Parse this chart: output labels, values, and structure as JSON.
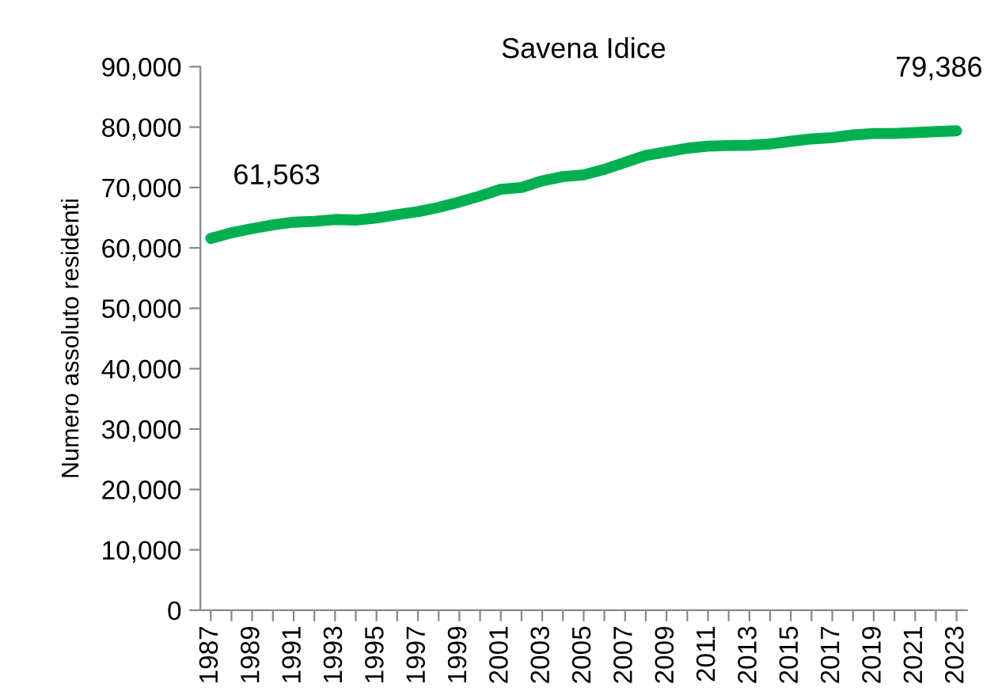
{
  "chart_data": {
    "type": "line",
    "title": "Savena Idice",
    "ylabel": "Numero assoluto residenti",
    "categories": [
      "1987",
      null,
      "1989",
      null,
      "1991",
      null,
      "1993",
      null,
      "1995",
      null,
      "1997",
      null,
      "1999",
      null,
      "2001",
      null,
      "2003",
      null,
      "2005",
      null,
      "2007",
      null,
      "2009",
      null,
      "2011",
      null,
      "2013",
      null,
      "2015",
      null,
      "2017",
      null,
      "2019",
      null,
      "2021",
      null,
      "2023"
    ],
    "series": [
      {
        "color": "#00b050",
        "values": [
          61563,
          62500,
          63200,
          63800,
          64250,
          64400,
          64700,
          64600,
          64950,
          65500,
          66000,
          66700,
          67600,
          68600,
          69700,
          70000,
          71100,
          71800,
          72100,
          73000,
          74150,
          75300,
          75900,
          76500,
          76850,
          76950,
          77000,
          77200,
          77650,
          78050,
          78250,
          78700,
          78950,
          78950,
          79100,
          79250,
          79386
        ],
        "value_labels": [
          "61,563",
          null,
          null,
          null,
          null,
          null,
          null,
          null,
          null,
          null,
          null,
          null,
          null,
          null,
          null,
          null,
          null,
          null,
          null,
          null,
          null,
          null,
          null,
          null,
          null,
          null,
          null,
          null,
          null,
          null,
          null,
          null,
          null,
          null,
          null,
          null,
          "79,386"
        ]
      }
    ],
    "ylim": [
      0,
      90000
    ],
    "yticks": [
      {
        "value": 0,
        "label": "0"
      },
      {
        "value": 10000,
        "label": "10,000"
      },
      {
        "value": 20000,
        "label": "20,000"
      },
      {
        "value": 30000,
        "label": "30,000"
      },
      {
        "value": 40000,
        "label": "40,000"
      },
      {
        "value": 50000,
        "label": "50,000"
      },
      {
        "value": 60000,
        "label": "60,000"
      },
      {
        "value": 70000,
        "label": "70,000"
      },
      {
        "value": 80000,
        "label": "80,000"
      },
      {
        "value": 90000,
        "label": "90,000"
      }
    ],
    "grid": false,
    "legend": false,
    "marker": "none",
    "line_style": "solid"
  }
}
